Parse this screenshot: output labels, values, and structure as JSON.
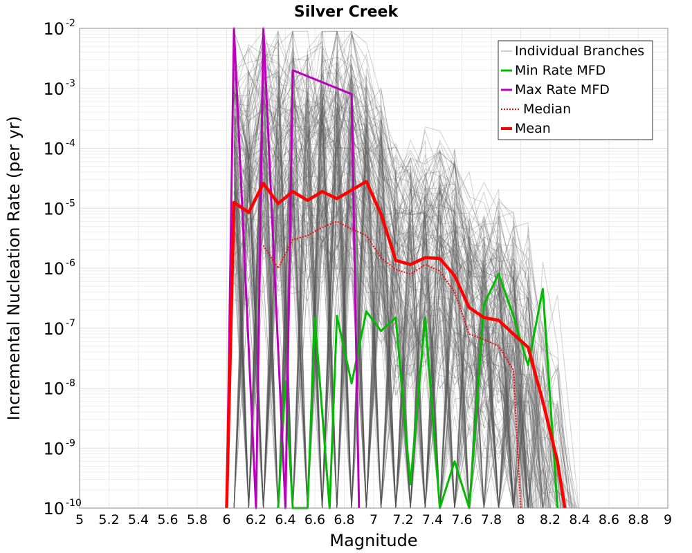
{
  "chart_data": {
    "type": "line",
    "title": "Silver Creek",
    "xlabel": "Magnitude",
    "ylabel": "Incremental Nucleation Rate (per yr)",
    "xlim": [
      5,
      9
    ],
    "ylim": [
      1e-10,
      0.01
    ],
    "yscale": "log",
    "grid": true,
    "legend_position": "top-right",
    "x_ticks": [
      "5",
      "5.2",
      "5.4",
      "5.6",
      "5.8",
      "6",
      "6.2",
      "6.4",
      "6.6",
      "6.8",
      "7",
      "7.2",
      "7.4",
      "7.6",
      "7.8",
      "8",
      "8.2",
      "8.4",
      "8.6",
      "8.8",
      "9"
    ],
    "y_ticks": [
      {
        "value": 1e-10,
        "base": "10",
        "exp": "-10"
      },
      {
        "value": 1e-09,
        "base": "10",
        "exp": "-9"
      },
      {
        "value": 1e-08,
        "base": "10",
        "exp": "-8"
      },
      {
        "value": 1e-07,
        "base": "10",
        "exp": "-7"
      },
      {
        "value": 1e-06,
        "base": "10",
        "exp": "-6"
      },
      {
        "value": 1e-05,
        "base": "10",
        "exp": "-5"
      },
      {
        "value": 0.0001,
        "base": "10",
        "exp": "-4"
      },
      {
        "value": 0.001,
        "base": "10",
        "exp": "-3"
      },
      {
        "value": 0.01,
        "base": "10",
        "exp": "-2"
      }
    ],
    "colors": {
      "branches": "#555555",
      "min": "#00bb00",
      "max": "#bb00bb",
      "median": "#ff0000",
      "mean": "#ff0000"
    },
    "legend": [
      "Individual Branches",
      "Min Rate MFD",
      "Max Rate MFD",
      "Median",
      "Mean"
    ],
    "series": [
      {
        "name": "Min Rate MFD",
        "x": [
          6.35,
          6.4,
          6.45,
          6.55,
          6.6,
          6.7,
          6.75,
          6.85,
          6.95,
          7.05,
          7.15,
          7.25,
          7.35,
          7.45,
          7.55,
          7.65,
          7.75,
          7.85,
          7.95,
          8.05,
          8.15,
          8.25
        ],
        "y": [
          1e-10,
          1.3e-08,
          1e-10,
          1e-10,
          1.5e-07,
          1e-10,
          1.6e-07,
          1.2e-08,
          1.9e-07,
          9e-08,
          1.5e-07,
          2.5e-10,
          1.5e-07,
          1e-10,
          6e-10,
          1e-10,
          2.5e-07,
          8e-07,
          1.6e-07,
          2.4e-08,
          4.5e-07,
          1e-10
        ]
      },
      {
        "name": "Max Rate MFD",
        "x": [
          6.0,
          6.05,
          6.2,
          6.25,
          6.4,
          6.45,
          6.85,
          6.9
        ],
        "y": [
          1e-10,
          0.075,
          1e-10,
          0.06,
          1e-10,
          0.002,
          0.0008,
          1e-10
        ]
      },
      {
        "name": "Median",
        "x": [
          6.25,
          6.35,
          6.45,
          6.55,
          6.65,
          6.75,
          6.85,
          6.95,
          7.05,
          7.15,
          7.25,
          7.35,
          7.45,
          7.55,
          7.65,
          7.75,
          7.85,
          7.95,
          8.0
        ],
        "y": [
          2.4e-06,
          1e-06,
          3e-06,
          3.5e-06,
          4.8e-06,
          6e-06,
          4.5e-06,
          3.5e-06,
          1.5e-06,
          9.5e-07,
          8e-07,
          1.15e-06,
          9e-07,
          4e-07,
          8e-08,
          6.5e-08,
          5e-08,
          2e-08,
          1e-10
        ]
      },
      {
        "name": "Mean",
        "x": [
          6.0,
          6.05,
          6.15,
          6.25,
          6.35,
          6.45,
          6.55,
          6.65,
          6.75,
          6.85,
          6.95,
          7.05,
          7.15,
          7.25,
          7.35,
          7.45,
          7.55,
          7.65,
          7.75,
          7.85,
          7.95,
          8.05,
          8.15,
          8.25,
          8.3
        ],
        "y": [
          1e-10,
          1.25e-05,
          8.5e-06,
          2.6e-05,
          1.2e-05,
          1.9e-05,
          1.35e-05,
          1.9e-05,
          1.45e-05,
          2e-05,
          2.8e-05,
          8e-06,
          1.35e-06,
          1.15e-06,
          1.5e-06,
          1.45e-06,
          7.5e-07,
          2.2e-07,
          1.5e-07,
          1.35e-07,
          8e-08,
          4.8e-08,
          6e-09,
          6e-10,
          1e-10
        ]
      }
    ]
  }
}
